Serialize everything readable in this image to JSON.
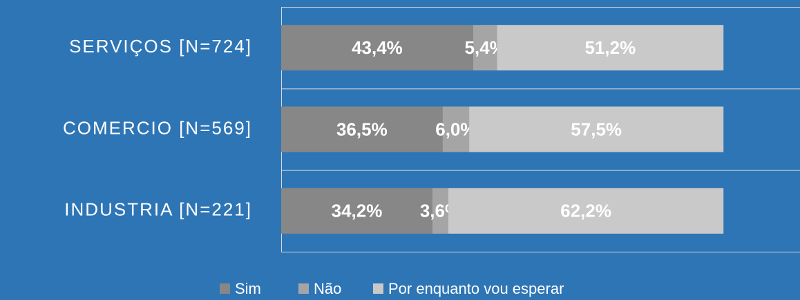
{
  "chart_data": {
    "type": "stacked-bar-horizontal",
    "categories": [
      "SERVIÇOS [N=724]",
      "COMERCIO [N=569]",
      "INDUSTRIA [N=221]"
    ],
    "series": [
      {
        "name": "Sim",
        "color": "#878787",
        "values": [
          43.4,
          36.5,
          34.2
        ],
        "value_labels": [
          "43,4%",
          "36,5%",
          "34,2%"
        ]
      },
      {
        "name": "Não",
        "color": "#a5a5a5",
        "values": [
          5.4,
          6.0,
          3.6
        ],
        "value_labels": [
          "5,4%",
          "6,0%",
          "3,6%"
        ]
      },
      {
        "name": "Por enquanto vou esperar",
        "color": "#c9c9c9",
        "values": [
          51.2,
          57.5,
          62.2
        ],
        "value_labels": [
          "51,2%",
          "57,5%",
          "62,2%"
        ]
      }
    ],
    "xlim": [
      0,
      117.3
    ],
    "legend": "bottom"
  }
}
